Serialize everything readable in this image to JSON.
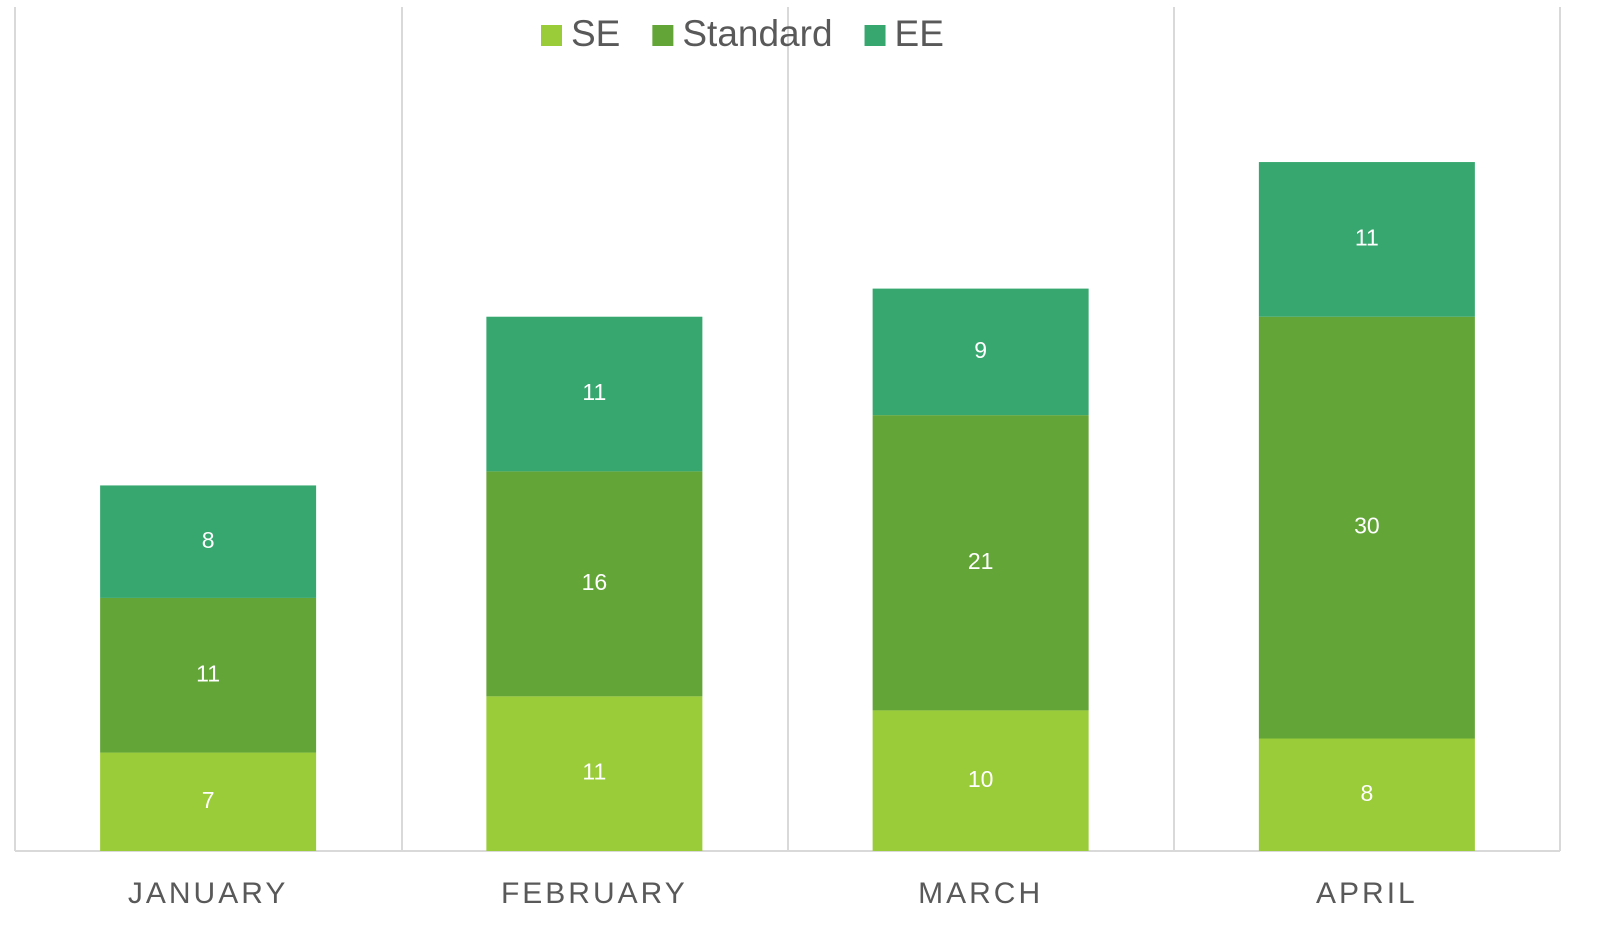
{
  "chart_data": {
    "type": "stacked_bar",
    "categories": [
      "JANUARY",
      "FEBRUARY",
      "MARCH",
      "APRIL"
    ],
    "series": [
      {
        "name": "SE",
        "color": "#9acb38",
        "values": [
          7,
          11,
          10,
          8
        ]
      },
      {
        "name": "Standard",
        "color": "#63a537",
        "values": [
          11,
          16,
          21,
          30
        ]
      },
      {
        "name": "EE",
        "color": "#37a76f",
        "values": [
          8,
          11,
          9,
          11
        ]
      }
    ],
    "legend": "top"
  }
}
